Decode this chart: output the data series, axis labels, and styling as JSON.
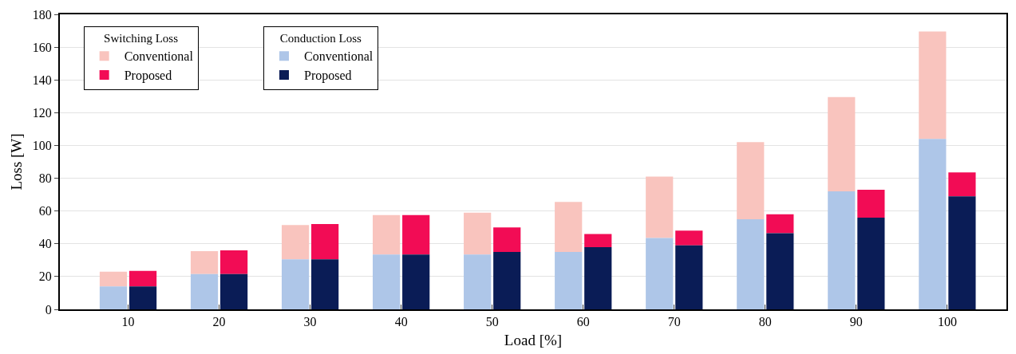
{
  "chart_data": {
    "type": "bar",
    "xlabel": "Load [%]",
    "ylabel": "Loss [W]",
    "categories": [
      "10",
      "20",
      "30",
      "40",
      "50",
      "60",
      "70",
      "80",
      "90",
      "100"
    ],
    "legend_title": [
      "Switching Loss",
      "Conduction Loss"
    ],
    "series": [
      {
        "name": "Conventional",
        "color": "#f9c4be",
        "base": [
          14,
          21.5,
          30.5,
          33.5,
          33.5,
          35,
          43.5,
          55,
          72,
          104
        ],
        "values": [
          9,
          14,
          21,
          24,
          25.5,
          30.5,
          37.5,
          47,
          57.5,
          65.5
        ]
      },
      {
        "name": "Proposed",
        "color": "#f20c55",
        "base": [
          14,
          21.5,
          30.5,
          33.5,
          35,
          38,
          39,
          46.5,
          56,
          69
        ],
        "values": [
          9.5,
          14.5,
          21.5,
          24,
          15,
          8,
          9,
          11.5,
          17,
          14.5
        ]
      },
      {
        "name": "Conventional",
        "color": "#aec6e8",
        "values": [
          14,
          21.5,
          30.5,
          33.5,
          33.5,
          35,
          43.5,
          55,
          72,
          104
        ]
      },
      {
        "name": "Proposed",
        "color": "#0a1c56",
        "values": [
          14,
          21.5,
          30.5,
          33.5,
          35,
          38,
          39,
          46.5,
          56,
          69
        ]
      }
    ],
    "ylim": [
      0,
      180
    ],
    "yticks": [
      0,
      20,
      40,
      60,
      80,
      100,
      120,
      140,
      160,
      180
    ],
    "grid": "y",
    "legend": "top left"
  }
}
